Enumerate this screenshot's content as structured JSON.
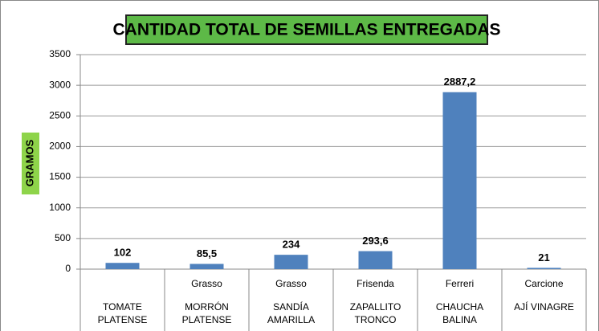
{
  "chart_data": {
    "type": "bar",
    "title": "CANTIDAD TOTAL DE SEMILLAS ENTREGADAS",
    "y_label": "GRAMOS",
    "categories": [
      "TOMATE PLATENSE",
      "MORRÓN PLATENSE",
      "SANDÍA AMARILLA",
      "ZAPALLITO TRONCO",
      "CHAUCHA BALINA",
      "AJÍ VINAGRE"
    ],
    "subcategories": [
      null,
      "Grasso",
      "Grasso",
      "Frisenda",
      "Ferreri",
      "Carcione"
    ],
    "values": [
      102,
      85.5,
      234,
      293.6,
      2887.2,
      21
    ],
    "value_labels": [
      "102",
      "85,5",
      "234",
      "293,6",
      "2887,2",
      "21"
    ],
    "color": "#4f81bd",
    "ylim": [
      0,
      3500
    ],
    "yticks": [
      0,
      500,
      1000,
      1500,
      2000,
      2500,
      3000,
      3500
    ],
    "grid": true
  }
}
